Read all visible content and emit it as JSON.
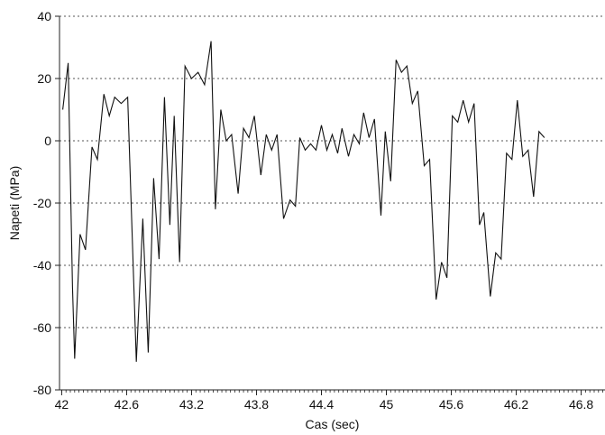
{
  "chart_data": {
    "type": "line",
    "title": "",
    "xlabel": "Cas (sec)",
    "ylabel": "Napeti (MPa)",
    "xlim": [
      41.98,
      47.02
    ],
    "ylim": [
      -80,
      40
    ],
    "x_ticks": [
      42,
      42.6,
      43.2,
      43.8,
      44.4,
      45,
      45.6,
      46.2,
      46.8
    ],
    "x_tick_labels": [
      "42",
      "42.6",
      "43.2",
      "43.8",
      "44.4",
      "45",
      "45.6",
      "46.2",
      "46.8"
    ],
    "y_ticks": [
      40,
      20,
      0,
      -20,
      -40,
      -60,
      -80
    ],
    "y_tick_labels": [
      "40",
      "20",
      "0",
      "-20",
      "-40",
      "-60",
      "-80"
    ],
    "gridlines": "dotted, at y ticks",
    "legend": "none",
    "series": [
      {
        "values": [
          [
            42.01,
            10
          ],
          [
            42.06,
            25
          ],
          [
            42.1,
            -47
          ],
          [
            42.12,
            -70
          ],
          [
            42.17,
            -30
          ],
          [
            42.22,
            -35
          ],
          [
            42.28,
            -2
          ],
          [
            42.33,
            -6
          ],
          [
            42.39,
            15
          ],
          [
            42.44,
            8
          ],
          [
            42.49,
            14
          ],
          [
            42.55,
            12
          ],
          [
            42.61,
            14
          ],
          [
            42.69,
            -71
          ],
          [
            42.75,
            -25
          ],
          [
            42.8,
            -68
          ],
          [
            42.85,
            -12
          ],
          [
            42.9,
            -38
          ],
          [
            42.95,
            14
          ],
          [
            43.0,
            -27
          ],
          [
            43.04,
            8
          ],
          [
            43.09,
            -39
          ],
          [
            43.14,
            24
          ],
          [
            43.2,
            20
          ],
          [
            43.26,
            22
          ],
          [
            43.32,
            18
          ],
          [
            43.38,
            32
          ],
          [
            43.42,
            -22
          ],
          [
            43.47,
            10
          ],
          [
            43.52,
            0
          ],
          [
            43.57,
            2
          ],
          [
            43.63,
            -17
          ],
          [
            43.68,
            4
          ],
          [
            43.73,
            1
          ],
          [
            43.78,
            8
          ],
          [
            43.84,
            -11
          ],
          [
            43.89,
            2
          ],
          [
            43.94,
            -3
          ],
          [
            43.99,
            2
          ],
          [
            44.05,
            -25
          ],
          [
            44.11,
            -19
          ],
          [
            44.16,
            -21
          ],
          [
            44.2,
            1
          ],
          [
            44.25,
            -3
          ],
          [
            44.3,
            -1
          ],
          [
            44.35,
            -3
          ],
          [
            44.4,
            5
          ],
          [
            44.45,
            -3
          ],
          [
            44.5,
            2
          ],
          [
            44.55,
            -4
          ],
          [
            44.59,
            4
          ],
          [
            44.65,
            -5
          ],
          [
            44.7,
            2
          ],
          [
            44.75,
            -1
          ],
          [
            44.79,
            9
          ],
          [
            44.84,
            1
          ],
          [
            44.89,
            7
          ],
          [
            44.95,
            -24
          ],
          [
            44.99,
            3
          ],
          [
            45.04,
            -13
          ],
          [
            45.09,
            26
          ],
          [
            45.14,
            22
          ],
          [
            45.19,
            24
          ],
          [
            45.24,
            12
          ],
          [
            45.29,
            16
          ],
          [
            45.35,
            -8
          ],
          [
            45.4,
            -6
          ],
          [
            45.46,
            -51
          ],
          [
            45.51,
            -39
          ],
          [
            45.56,
            -44
          ],
          [
            45.61,
            8
          ],
          [
            45.66,
            6
          ],
          [
            45.71,
            13
          ],
          [
            45.76,
            6
          ],
          [
            45.81,
            12
          ],
          [
            45.86,
            -27
          ],
          [
            45.9,
            -23
          ],
          [
            45.96,
            -50
          ],
          [
            46.01,
            -36
          ],
          [
            46.06,
            -38
          ],
          [
            46.11,
            -4
          ],
          [
            46.16,
            -6
          ],
          [
            46.21,
            13
          ],
          [
            46.26,
            -5
          ],
          [
            46.31,
            -3
          ],
          [
            46.36,
            -18
          ],
          [
            46.41,
            3
          ],
          [
            46.46,
            1
          ]
        ]
      }
    ],
    "colors": {
      "line": "#111111",
      "grid": "#555555",
      "axis": "#222222",
      "text": "#111111"
    }
  }
}
